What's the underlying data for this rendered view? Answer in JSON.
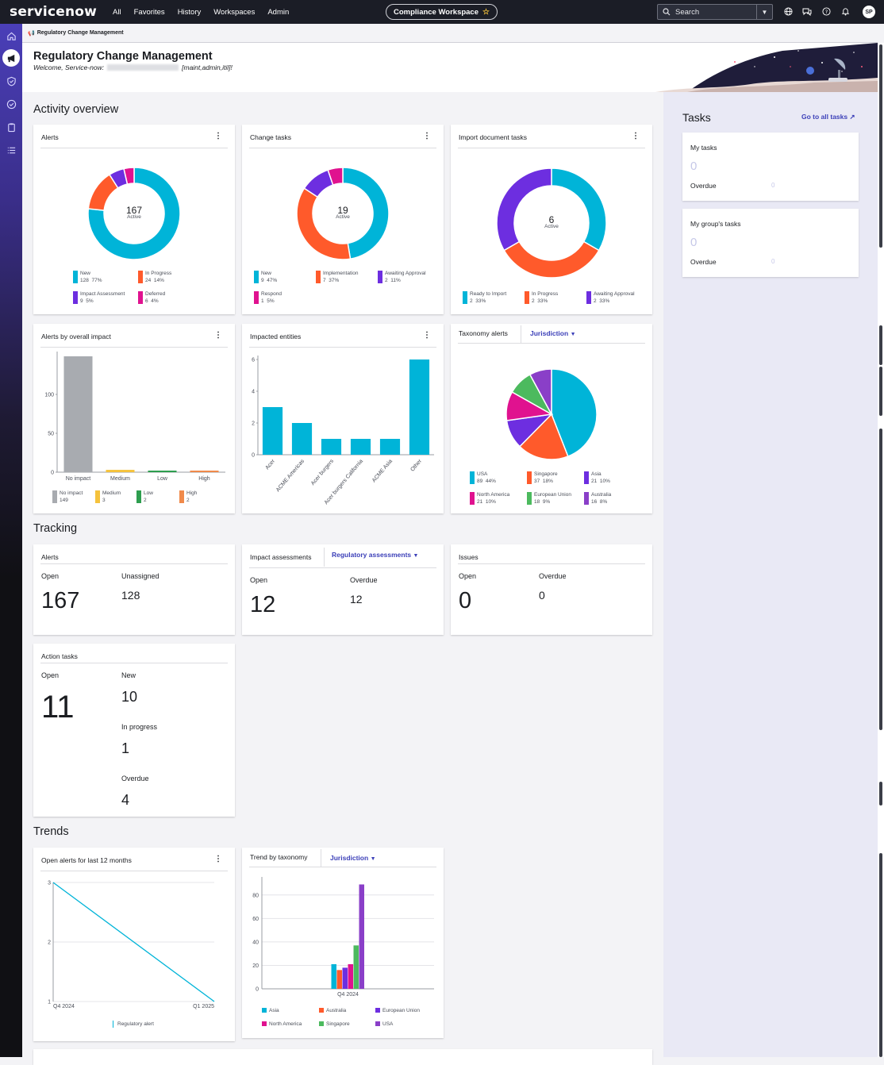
{
  "topnav": {
    "logo": "servicenow",
    "links": [
      "All",
      "Favorites",
      "History",
      "Workspaces",
      "Admin"
    ],
    "workspace": "Compliance Workspace",
    "search_placeholder": "Search",
    "avatar": "SP"
  },
  "breadcrumb": "Regulatory Change Management",
  "header": {
    "title": "Regulatory Change Management",
    "welcome_prefix": "Welcome, Service-now:",
    "welcome_roles": "[maint,admin,itil]!"
  },
  "sections": {
    "activity": "Activity overview",
    "tracking": "Tracking",
    "trends": "Trends"
  },
  "menu_glyph": "⋮",
  "cards": {
    "alerts": {
      "title": "Alerts",
      "center_value": "167",
      "center_label": "Active",
      "legend": [
        {
          "name": "New",
          "count": "128",
          "pct": "77%",
          "color": "#00b4d8"
        },
        {
          "name": "In Progress",
          "count": "24",
          "pct": "14%",
          "color": "#ff5a2b"
        },
        {
          "name": "Impact Assessment",
          "count": "9",
          "pct": "5%",
          "color": "#6d2ee0"
        },
        {
          "name": "Deferred",
          "count": "6",
          "pct": "4%",
          "color": "#e0128f"
        }
      ]
    },
    "change_tasks": {
      "title": "Change tasks",
      "center_value": "19",
      "center_label": "Active",
      "legend": [
        {
          "name": "New",
          "count": "9",
          "pct": "47%",
          "color": "#00b4d8"
        },
        {
          "name": "Implementation",
          "count": "7",
          "pct": "37%",
          "color": "#ff5a2b"
        },
        {
          "name": "Awaiting Approval",
          "count": "2",
          "pct": "11%",
          "color": "#6d2ee0"
        },
        {
          "name": "Respond",
          "count": "1",
          "pct": "5%",
          "color": "#e0128f"
        }
      ]
    },
    "import_tasks": {
      "title": "Import document tasks",
      "center_value": "6",
      "center_label": "Active",
      "legend": [
        {
          "name": "Ready to Import",
          "count": "2",
          "pct": "33%",
          "color": "#00b4d8"
        },
        {
          "name": "In Progress",
          "count": "2",
          "pct": "33%",
          "color": "#ff5a2b"
        },
        {
          "name": "Awaiting Approval",
          "count": "2",
          "pct": "33%",
          "color": "#6d2ee0"
        }
      ]
    },
    "alerts_impact": {
      "title": "Alerts by overall impact",
      "legend": [
        {
          "name": "No impact",
          "count": "149",
          "color": "#a8abb0"
        },
        {
          "name": "Medium",
          "count": "3",
          "color": "#f5c23c"
        },
        {
          "name": "Low",
          "count": "2",
          "color": "#2e9e4f"
        },
        {
          "name": "High",
          "count": "2",
          "color": "#f08a4b"
        }
      ]
    },
    "impacted_entities": {
      "title": "Impacted entities"
    },
    "taxonomy_alerts": {
      "title": "Taxonomy alerts",
      "dropdown": "Jurisdiction",
      "legend": [
        {
          "name": "USA",
          "count": "89",
          "pct": "44%",
          "color": "#00b4d8"
        },
        {
          "name": "Singapore",
          "count": "37",
          "pct": "18%",
          "color": "#ff5a2b"
        },
        {
          "name": "Asia",
          "count": "21",
          "pct": "10%",
          "color": "#6d2ee0"
        },
        {
          "name": "North America",
          "count": "21",
          "pct": "10%",
          "color": "#e0128f"
        },
        {
          "name": "European Union",
          "count": "18",
          "pct": "9%",
          "color": "#4cba5e"
        },
        {
          "name": "Australia",
          "count": "16",
          "pct": "8%",
          "color": "#8a3fc8"
        }
      ]
    },
    "tracking_alerts": {
      "title": "Alerts",
      "open_label": "Open",
      "open_value": "167",
      "unassigned_label": "Unassigned",
      "unassigned_value": "128"
    },
    "tracking_impact": {
      "title": "Impact assessments",
      "dropdown": "Regulatory assessments",
      "open_label": "Open",
      "open_value": "12",
      "overdue_label": "Overdue",
      "overdue_value": "12"
    },
    "tracking_issues": {
      "title": "Issues",
      "open_label": "Open",
      "open_value": "0",
      "overdue_label": "Overdue",
      "overdue_value": "0"
    },
    "action_tasks": {
      "title": "Action tasks",
      "open_label": "Open",
      "open_value": "11",
      "new_label": "New",
      "new_value": "10",
      "inprogress_label": "In progress",
      "inprogress_value": "1",
      "overdue_label": "Overdue",
      "overdue_value": "4"
    },
    "open_alerts_trend": {
      "title": "Open alerts for last 12 months",
      "legend": "Regulatory alert"
    },
    "trend_taxonomy": {
      "title": "Trend by taxonomy",
      "dropdown": "Jurisdiction",
      "legend": [
        {
          "name": "Asia",
          "color": "#00b4d8"
        },
        {
          "name": "Australia",
          "color": "#ff5a2b"
        },
        {
          "name": "European Union",
          "color": "#6d2ee0"
        },
        {
          "name": "North America",
          "color": "#e0128f"
        },
        {
          "name": "Singapore",
          "color": "#4cba5e"
        },
        {
          "name": "USA",
          "color": "#8a3fc8"
        }
      ]
    }
  },
  "tasks_panel": {
    "title": "Tasks",
    "go_all": "Go to all tasks ↗",
    "my_tasks": {
      "label": "My tasks",
      "value": "0",
      "overdue_label": "Overdue",
      "overdue_value": "0"
    },
    "group_tasks": {
      "label": "My group's tasks",
      "value": "0",
      "overdue_label": "Overdue",
      "overdue_value": "0"
    }
  },
  "chart_data": [
    {
      "type": "pie",
      "title": "Alerts",
      "categories": [
        "New",
        "In Progress",
        "Impact Assessment",
        "Deferred"
      ],
      "values": [
        128,
        24,
        9,
        6
      ]
    },
    {
      "type": "pie",
      "title": "Change tasks",
      "categories": [
        "New",
        "Implementation",
        "Awaiting Approval",
        "Respond"
      ],
      "values": [
        9,
        7,
        2,
        1
      ]
    },
    {
      "type": "pie",
      "title": "Import document tasks",
      "categories": [
        "Ready to Import",
        "In Progress",
        "Awaiting Approval"
      ],
      "values": [
        2,
        2,
        2
      ]
    },
    {
      "type": "bar",
      "title": "Alerts by overall impact",
      "categories": [
        "No impact",
        "Medium",
        "Low",
        "High"
      ],
      "values": [
        149,
        3,
        2,
        2
      ],
      "yticks": [
        "0",
        "50",
        "100"
      ],
      "ylim": [
        0,
        150
      ]
    },
    {
      "type": "bar",
      "title": "Impacted entities",
      "categories": [
        "Acer",
        "ACME Americas",
        "Acer burgers",
        "Acer burgers California",
        "ACME Asia",
        "Other"
      ],
      "values": [
        3,
        2,
        1,
        1,
        1,
        6
      ],
      "yticks": [
        "0",
        "2",
        "4",
        "6"
      ],
      "ylim": [
        0,
        6
      ]
    },
    {
      "type": "pie",
      "title": "Taxonomy alerts",
      "categories": [
        "USA",
        "Singapore",
        "Asia",
        "North America",
        "European Union",
        "Australia"
      ],
      "values": [
        89,
        37,
        21,
        21,
        18,
        16
      ]
    },
    {
      "type": "line",
      "title": "Open alerts for last 12 months",
      "x": [
        "Q4 2024",
        "Q1 2025"
      ],
      "series": [
        {
          "name": "Regulatory alert",
          "values": [
            3,
            1
          ]
        }
      ],
      "yticks": [
        "1",
        "2",
        "3"
      ],
      "ylim": [
        1,
        3
      ]
    },
    {
      "type": "bar",
      "title": "Trend by taxonomy",
      "categories": [
        "Q4 2024"
      ],
      "series": [
        {
          "name": "Asia",
          "values": [
            21
          ]
        },
        {
          "name": "Australia",
          "values": [
            16
          ]
        },
        {
          "name": "European Union",
          "values": [
            18
          ]
        },
        {
          "name": "North America",
          "values": [
            21
          ]
        },
        {
          "name": "Singapore",
          "values": [
            37
          ]
        },
        {
          "name": "USA",
          "values": [
            89
          ]
        }
      ],
      "yticks": [
        "0",
        "20",
        "40",
        "60",
        "80"
      ],
      "ylim": [
        0,
        90
      ]
    }
  ]
}
